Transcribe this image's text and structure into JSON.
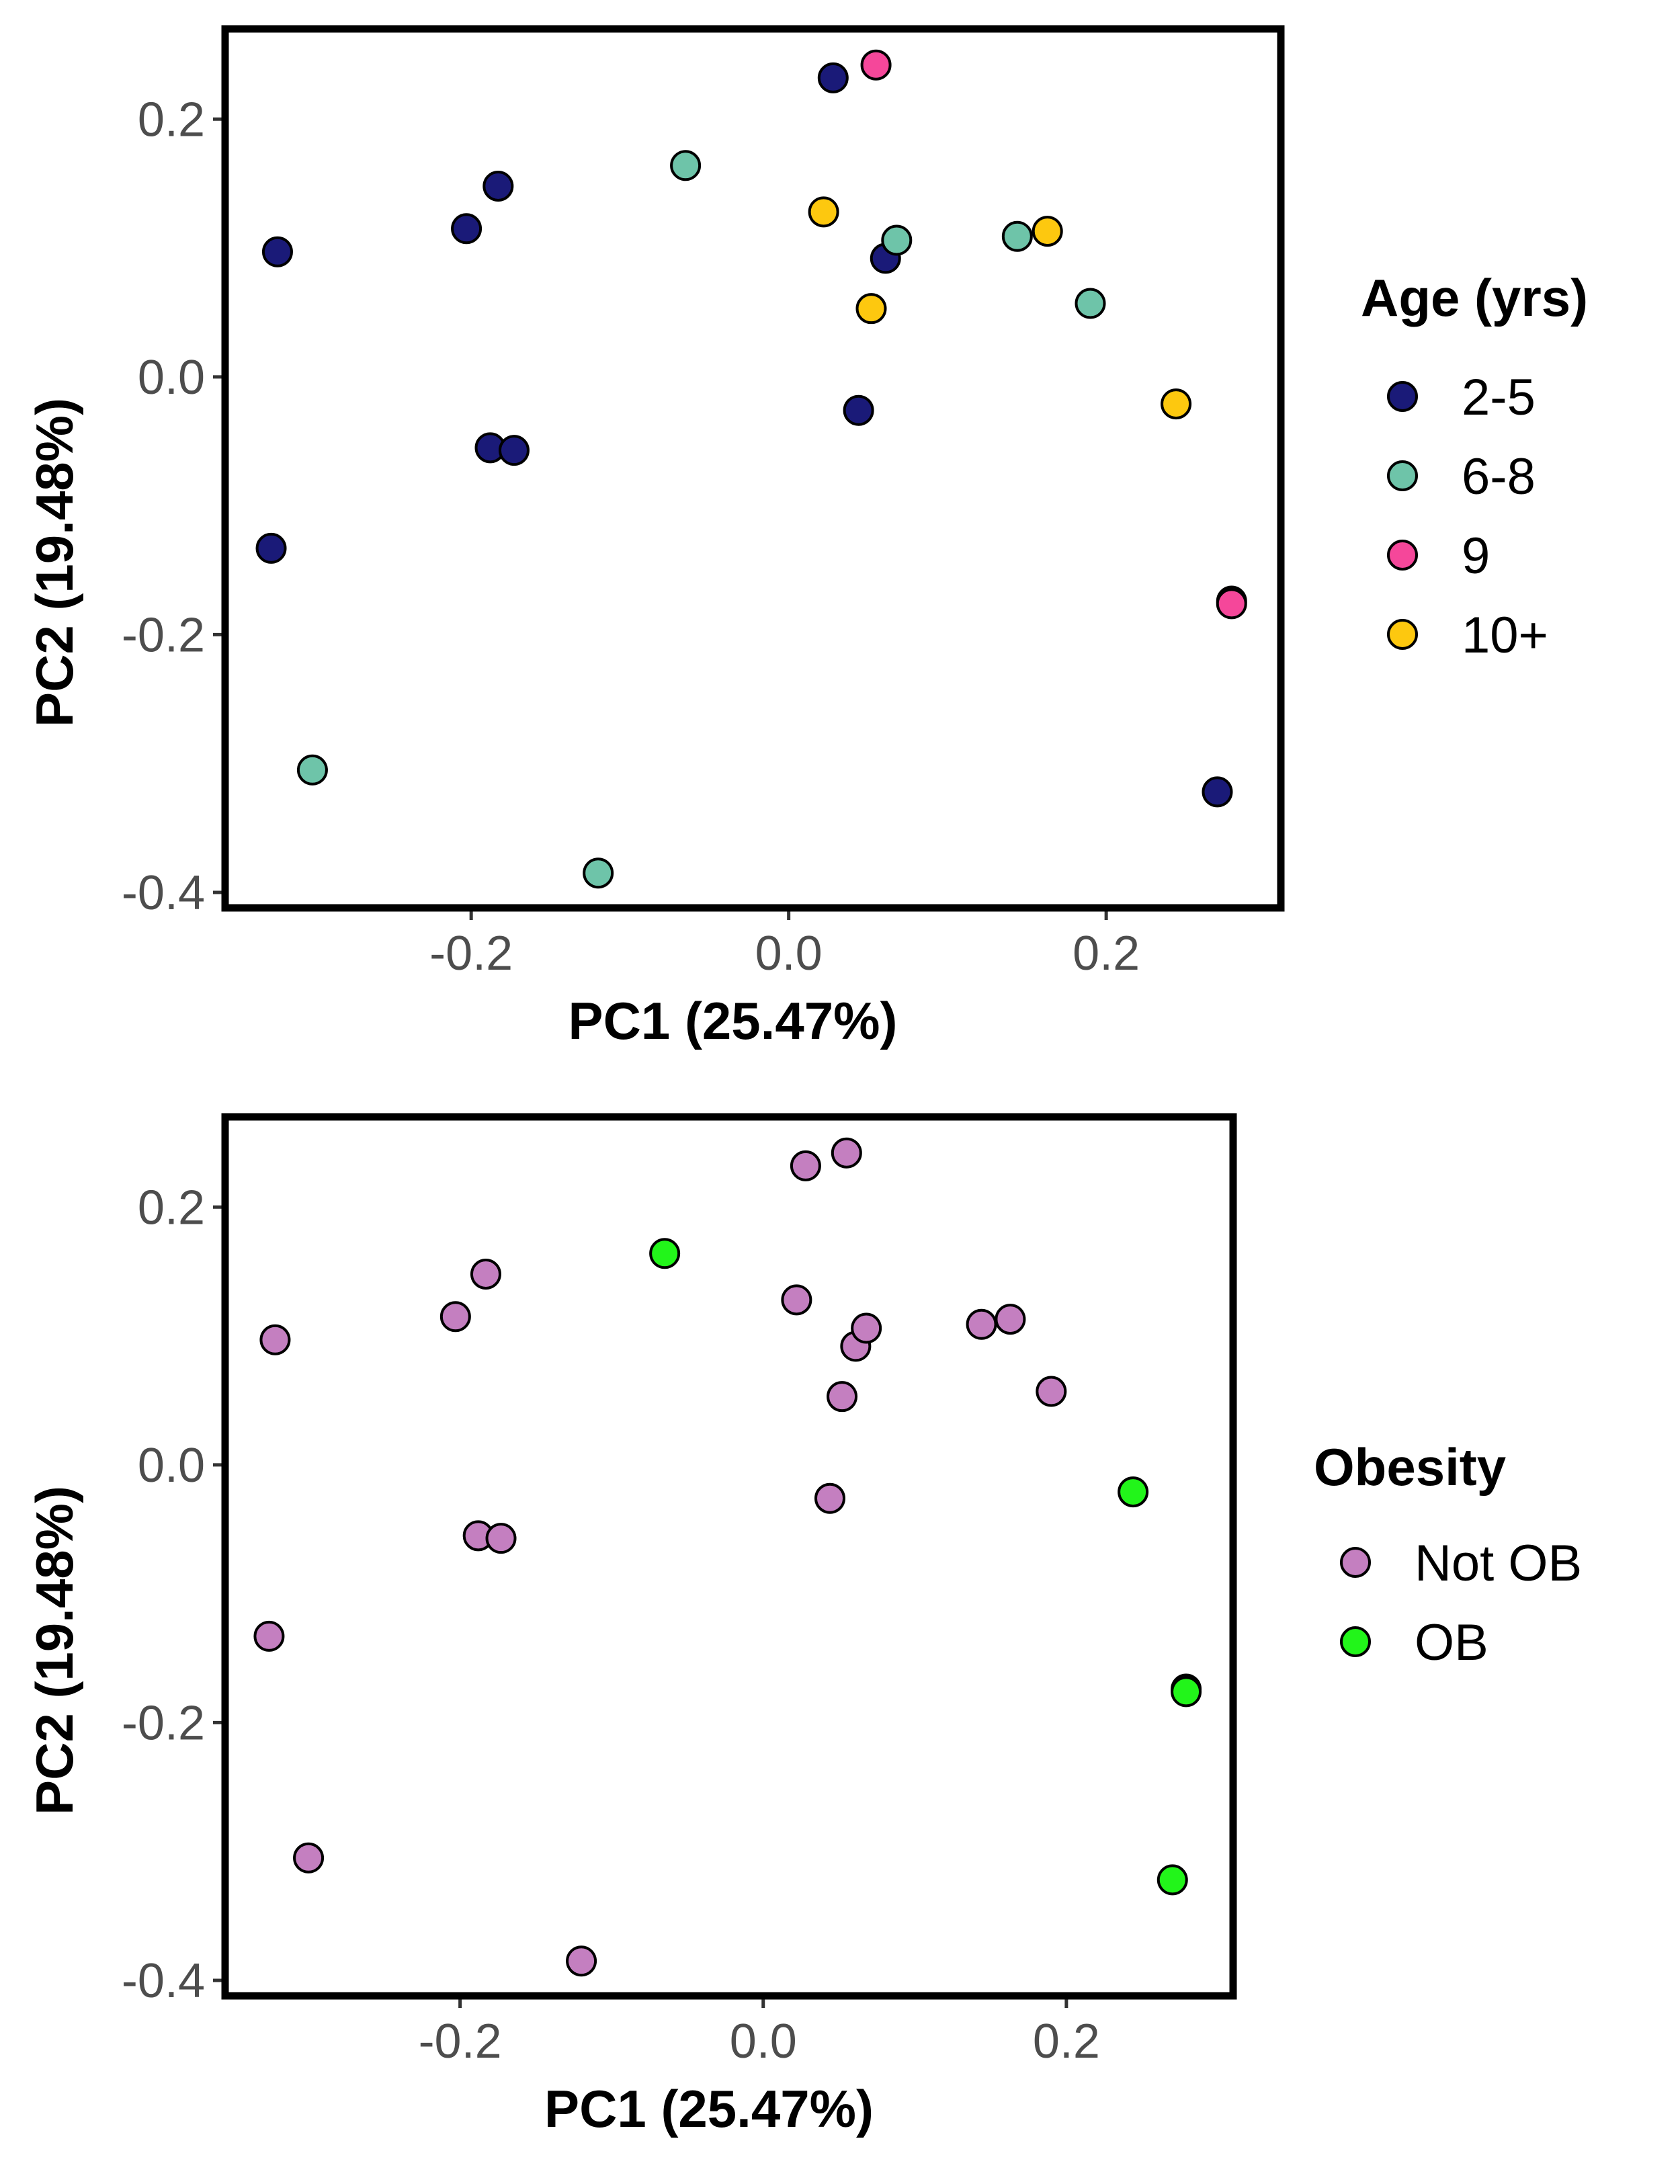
{
  "chart_data": [
    {
      "type": "scatter",
      "xlabel": "PC1 (25.47%)",
      "ylabel": "PC2 (19.48%)",
      "xlim": [
        -0.355,
        0.31
      ],
      "ylim": [
        -0.412,
        0.27
      ],
      "xticks": [
        -0.2,
        0.0,
        0.2
      ],
      "xtick_labels": [
        "-0.2",
        "0.0",
        "0.2"
      ],
      "yticks": [
        0.2,
        0.0,
        -0.2,
        -0.4
      ],
      "ytick_labels": [
        "0.2",
        "0.0",
        "-0.2",
        "-0.4"
      ],
      "grid": false,
      "legend": {
        "title": "Age (yrs)",
        "placement": "right",
        "entries": [
          {
            "label": "2-5",
            "color": "#1a1a78"
          },
          {
            "label": "6-8",
            "color": "#6ec4a9"
          },
          {
            "label": "9",
            "color": "#f5479a"
          },
          {
            "label": "10+",
            "color": "#fdc80f"
          }
        ]
      },
      "series": [
        {
          "name": "2-5",
          "color": "#1a1a78",
          "points": [
            [
              0.028,
              0.232
            ],
            [
              -0.183,
              0.148
            ],
            [
              -0.203,
              0.115
            ],
            [
              -0.322,
              0.097
            ],
            [
              0.061,
              0.092
            ],
            [
              0.044,
              -0.026
            ],
            [
              -0.188,
              -0.055
            ],
            [
              -0.173,
              -0.057
            ],
            [
              -0.326,
              -0.133
            ],
            [
              0.27,
              -0.322
            ]
          ]
        },
        {
          "name": "6-8",
          "color": "#6ec4a9",
          "points": [
            [
              -0.065,
              0.164
            ],
            [
              0.068,
              0.106
            ],
            [
              0.144,
              0.109
            ],
            [
              0.19,
              0.057
            ],
            [
              -0.3,
              -0.305
            ],
            [
              -0.12,
              -0.385
            ]
          ]
        },
        {
          "name": "9",
          "color": "#f5479a",
          "points": [
            [
              0.055,
              0.242
            ],
            [
              0.279,
              -0.174
            ],
            [
              0.279,
              -0.176
            ]
          ]
        },
        {
          "name": "10+",
          "color": "#fdc80f",
          "points": [
            [
              0.022,
              0.128
            ],
            [
              0.163,
              0.113
            ],
            [
              0.052,
              0.053
            ],
            [
              0.244,
              -0.021
            ]
          ]
        }
      ]
    },
    {
      "type": "scatter",
      "xlabel": "PC1 (25.47%)",
      "ylabel": "PC2 (19.48%)",
      "xlim": [
        -0.355,
        0.31
      ],
      "ylim": [
        -0.412,
        0.27
      ],
      "xticks": [
        -0.2,
        0.0,
        0.2
      ],
      "xtick_labels": [
        "-0.2",
        "0.0",
        "0.2"
      ],
      "yticks": [
        0.2,
        0.0,
        -0.2,
        -0.4
      ],
      "ytick_labels": [
        "0.2",
        "0.0",
        "-0.2",
        "-0.4"
      ],
      "grid": false,
      "legend": {
        "title": "Obesity",
        "placement": "right",
        "entries": [
          {
            "label": "Not OB",
            "color": "#c47fc0"
          },
          {
            "label": "OB",
            "color": "#22f51a"
          }
        ]
      },
      "series": [
        {
          "name": "Not OB",
          "color": "#c47fc0",
          "points": [
            [
              0.028,
              0.232
            ],
            [
              -0.183,
              0.148
            ],
            [
              -0.203,
              0.115
            ],
            [
              -0.322,
              0.097
            ],
            [
              0.061,
              0.092
            ],
            [
              0.044,
              -0.026
            ],
            [
              -0.188,
              -0.055
            ],
            [
              -0.173,
              -0.057
            ],
            [
              -0.326,
              -0.133
            ],
            [
              0.068,
              0.106
            ],
            [
              0.144,
              0.109
            ],
            [
              0.19,
              0.057
            ],
            [
              -0.3,
              -0.305
            ],
            [
              -0.12,
              -0.385
            ],
            [
              0.055,
              0.242
            ],
            [
              0.022,
              0.128
            ],
            [
              0.163,
              0.113
            ],
            [
              0.052,
              0.053
            ]
          ]
        },
        {
          "name": "OB",
          "color": "#22f51a",
          "points": [
            [
              -0.065,
              0.164
            ],
            [
              0.279,
              -0.174
            ],
            [
              0.279,
              -0.176
            ],
            [
              0.244,
              -0.021
            ],
            [
              0.27,
              -0.322
            ]
          ]
        }
      ]
    }
  ]
}
